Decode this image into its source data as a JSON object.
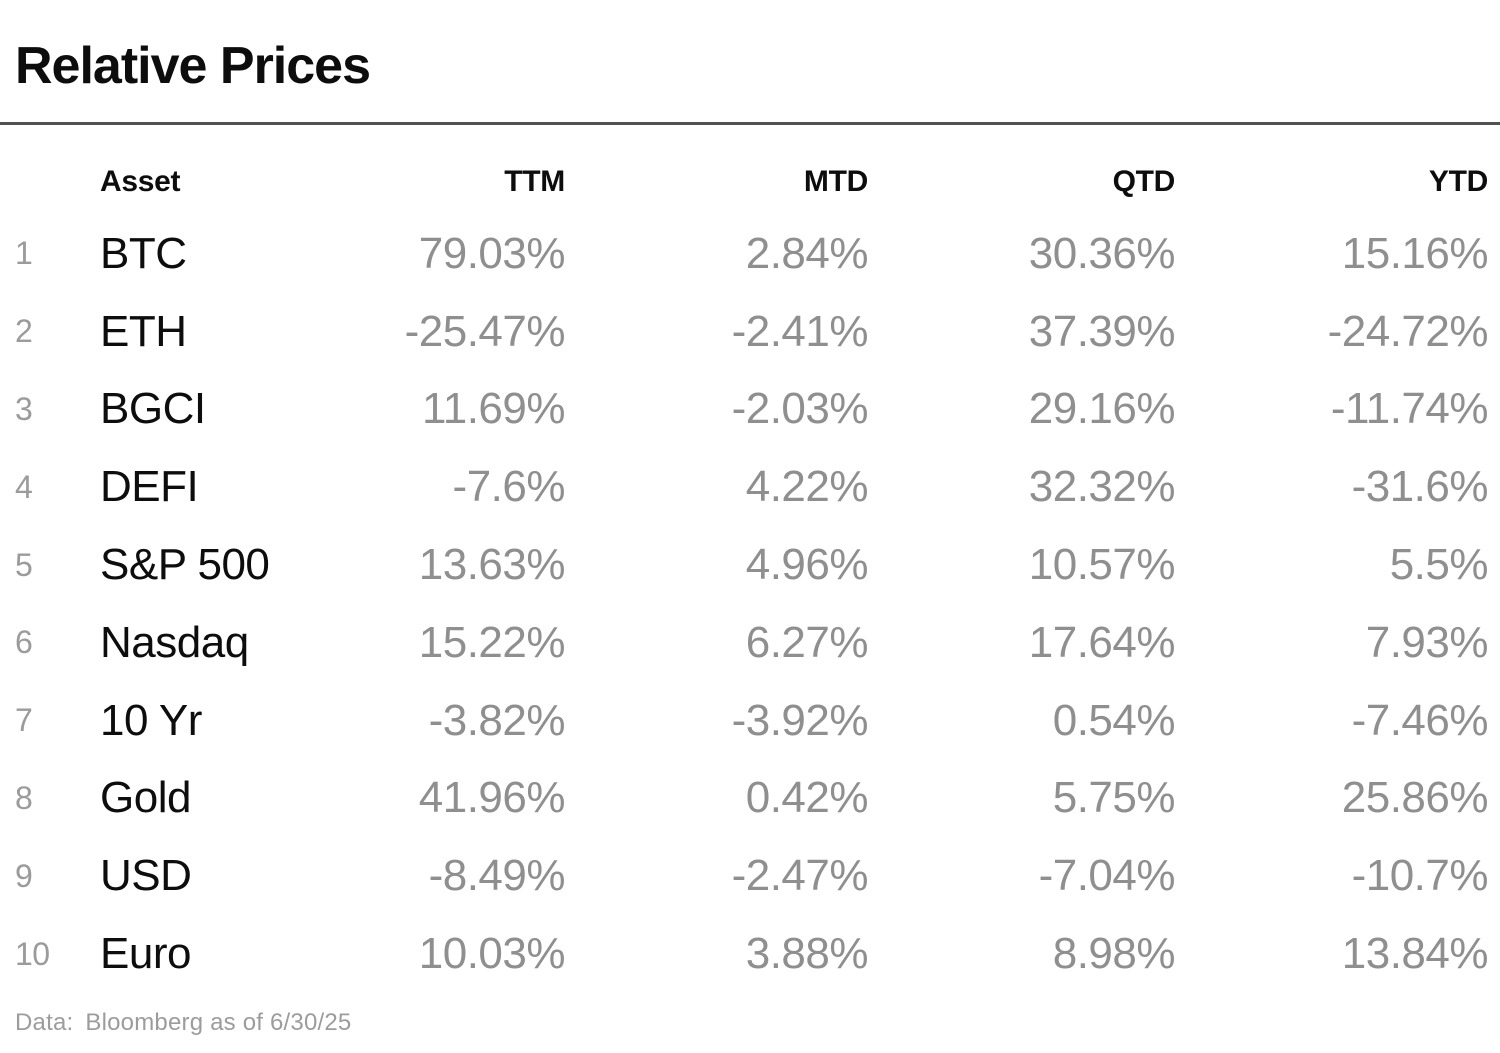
{
  "title": "Relative Prices",
  "table": {
    "columns": {
      "asset": "Asset",
      "ttm": "TTM",
      "mtd": "MTD",
      "qtd": "QTD",
      "ytd": "YTD"
    },
    "rows": [
      {
        "num": "1",
        "asset": "BTC",
        "ttm": "79.03%",
        "mtd": "2.84%",
        "qtd": "30.36%",
        "ytd": "15.16%"
      },
      {
        "num": "2",
        "asset": "ETH",
        "ttm": "-25.47%",
        "mtd": "-2.41%",
        "qtd": "37.39%",
        "ytd": "-24.72%"
      },
      {
        "num": "3",
        "asset": "BGCI",
        "ttm": "11.69%",
        "mtd": "-2.03%",
        "qtd": "29.16%",
        "ytd": "-11.74%"
      },
      {
        "num": "4",
        "asset": "DEFI",
        "ttm": "-7.6%",
        "mtd": "4.22%",
        "qtd": "32.32%",
        "ytd": "-31.6%"
      },
      {
        "num": "5",
        "asset": "S&P 500",
        "ttm": "13.63%",
        "mtd": "4.96%",
        "qtd": "10.57%",
        "ytd": "5.5%"
      },
      {
        "num": "6",
        "asset": "Nasdaq",
        "ttm": "15.22%",
        "mtd": "6.27%",
        "qtd": "17.64%",
        "ytd": "7.93%"
      },
      {
        "num": "7",
        "asset": "10 Yr",
        "ttm": "-3.82%",
        "mtd": "-3.92%",
        "qtd": "0.54%",
        "ytd": "-7.46%"
      },
      {
        "num": "8",
        "asset": "Gold",
        "ttm": "41.96%",
        "mtd": "0.42%",
        "qtd": "5.75%",
        "ytd": "25.86%"
      },
      {
        "num": "9",
        "asset": "USD",
        "ttm": "-8.49%",
        "mtd": "-2.47%",
        "qtd": "-7.04%",
        "ytd": "-10.7%"
      },
      {
        "num": "10",
        "asset": "Euro",
        "ttm": "10.03%",
        "mtd": "3.88%",
        "qtd": "8.98%",
        "ytd": "13.84%"
      }
    ]
  },
  "footer": {
    "label": "Data:",
    "value": "Bloomberg as of 6/30/25"
  },
  "colors": {
    "background": "#ffffff",
    "text": "#0d0d0d",
    "muted": "#8f8f8f",
    "rownum": "#9b9b9b",
    "divider": "#525252",
    "footer": "#9c9c9c"
  },
  "chart_data": {
    "type": "table",
    "title": "Relative Prices",
    "columns": [
      "Asset",
      "TTM",
      "MTD",
      "QTD",
      "YTD"
    ],
    "categories": [
      "BTC",
      "ETH",
      "BGCI",
      "DEFI",
      "S&P 500",
      "Nasdaq",
      "10 Yr",
      "Gold",
      "USD",
      "Euro"
    ],
    "series": [
      {
        "name": "TTM",
        "values": [
          79.03,
          -25.47,
          11.69,
          -7.6,
          13.63,
          15.22,
          -3.82,
          41.96,
          -8.49,
          10.03
        ]
      },
      {
        "name": "MTD",
        "values": [
          2.84,
          -2.41,
          -2.03,
          4.22,
          4.96,
          6.27,
          -3.92,
          0.42,
          -2.47,
          3.88
        ]
      },
      {
        "name": "QTD",
        "values": [
          30.36,
          37.39,
          29.16,
          32.32,
          10.57,
          17.64,
          0.54,
          5.75,
          -7.04,
          8.98
        ]
      },
      {
        "name": "YTD",
        "values": [
          15.16,
          -24.72,
          -11.74,
          -31.6,
          5.5,
          7.93,
          -7.46,
          25.86,
          -10.7,
          13.84
        ]
      }
    ],
    "units": "percent",
    "source_note": "Data: Bloomberg as of 6/30/25"
  }
}
